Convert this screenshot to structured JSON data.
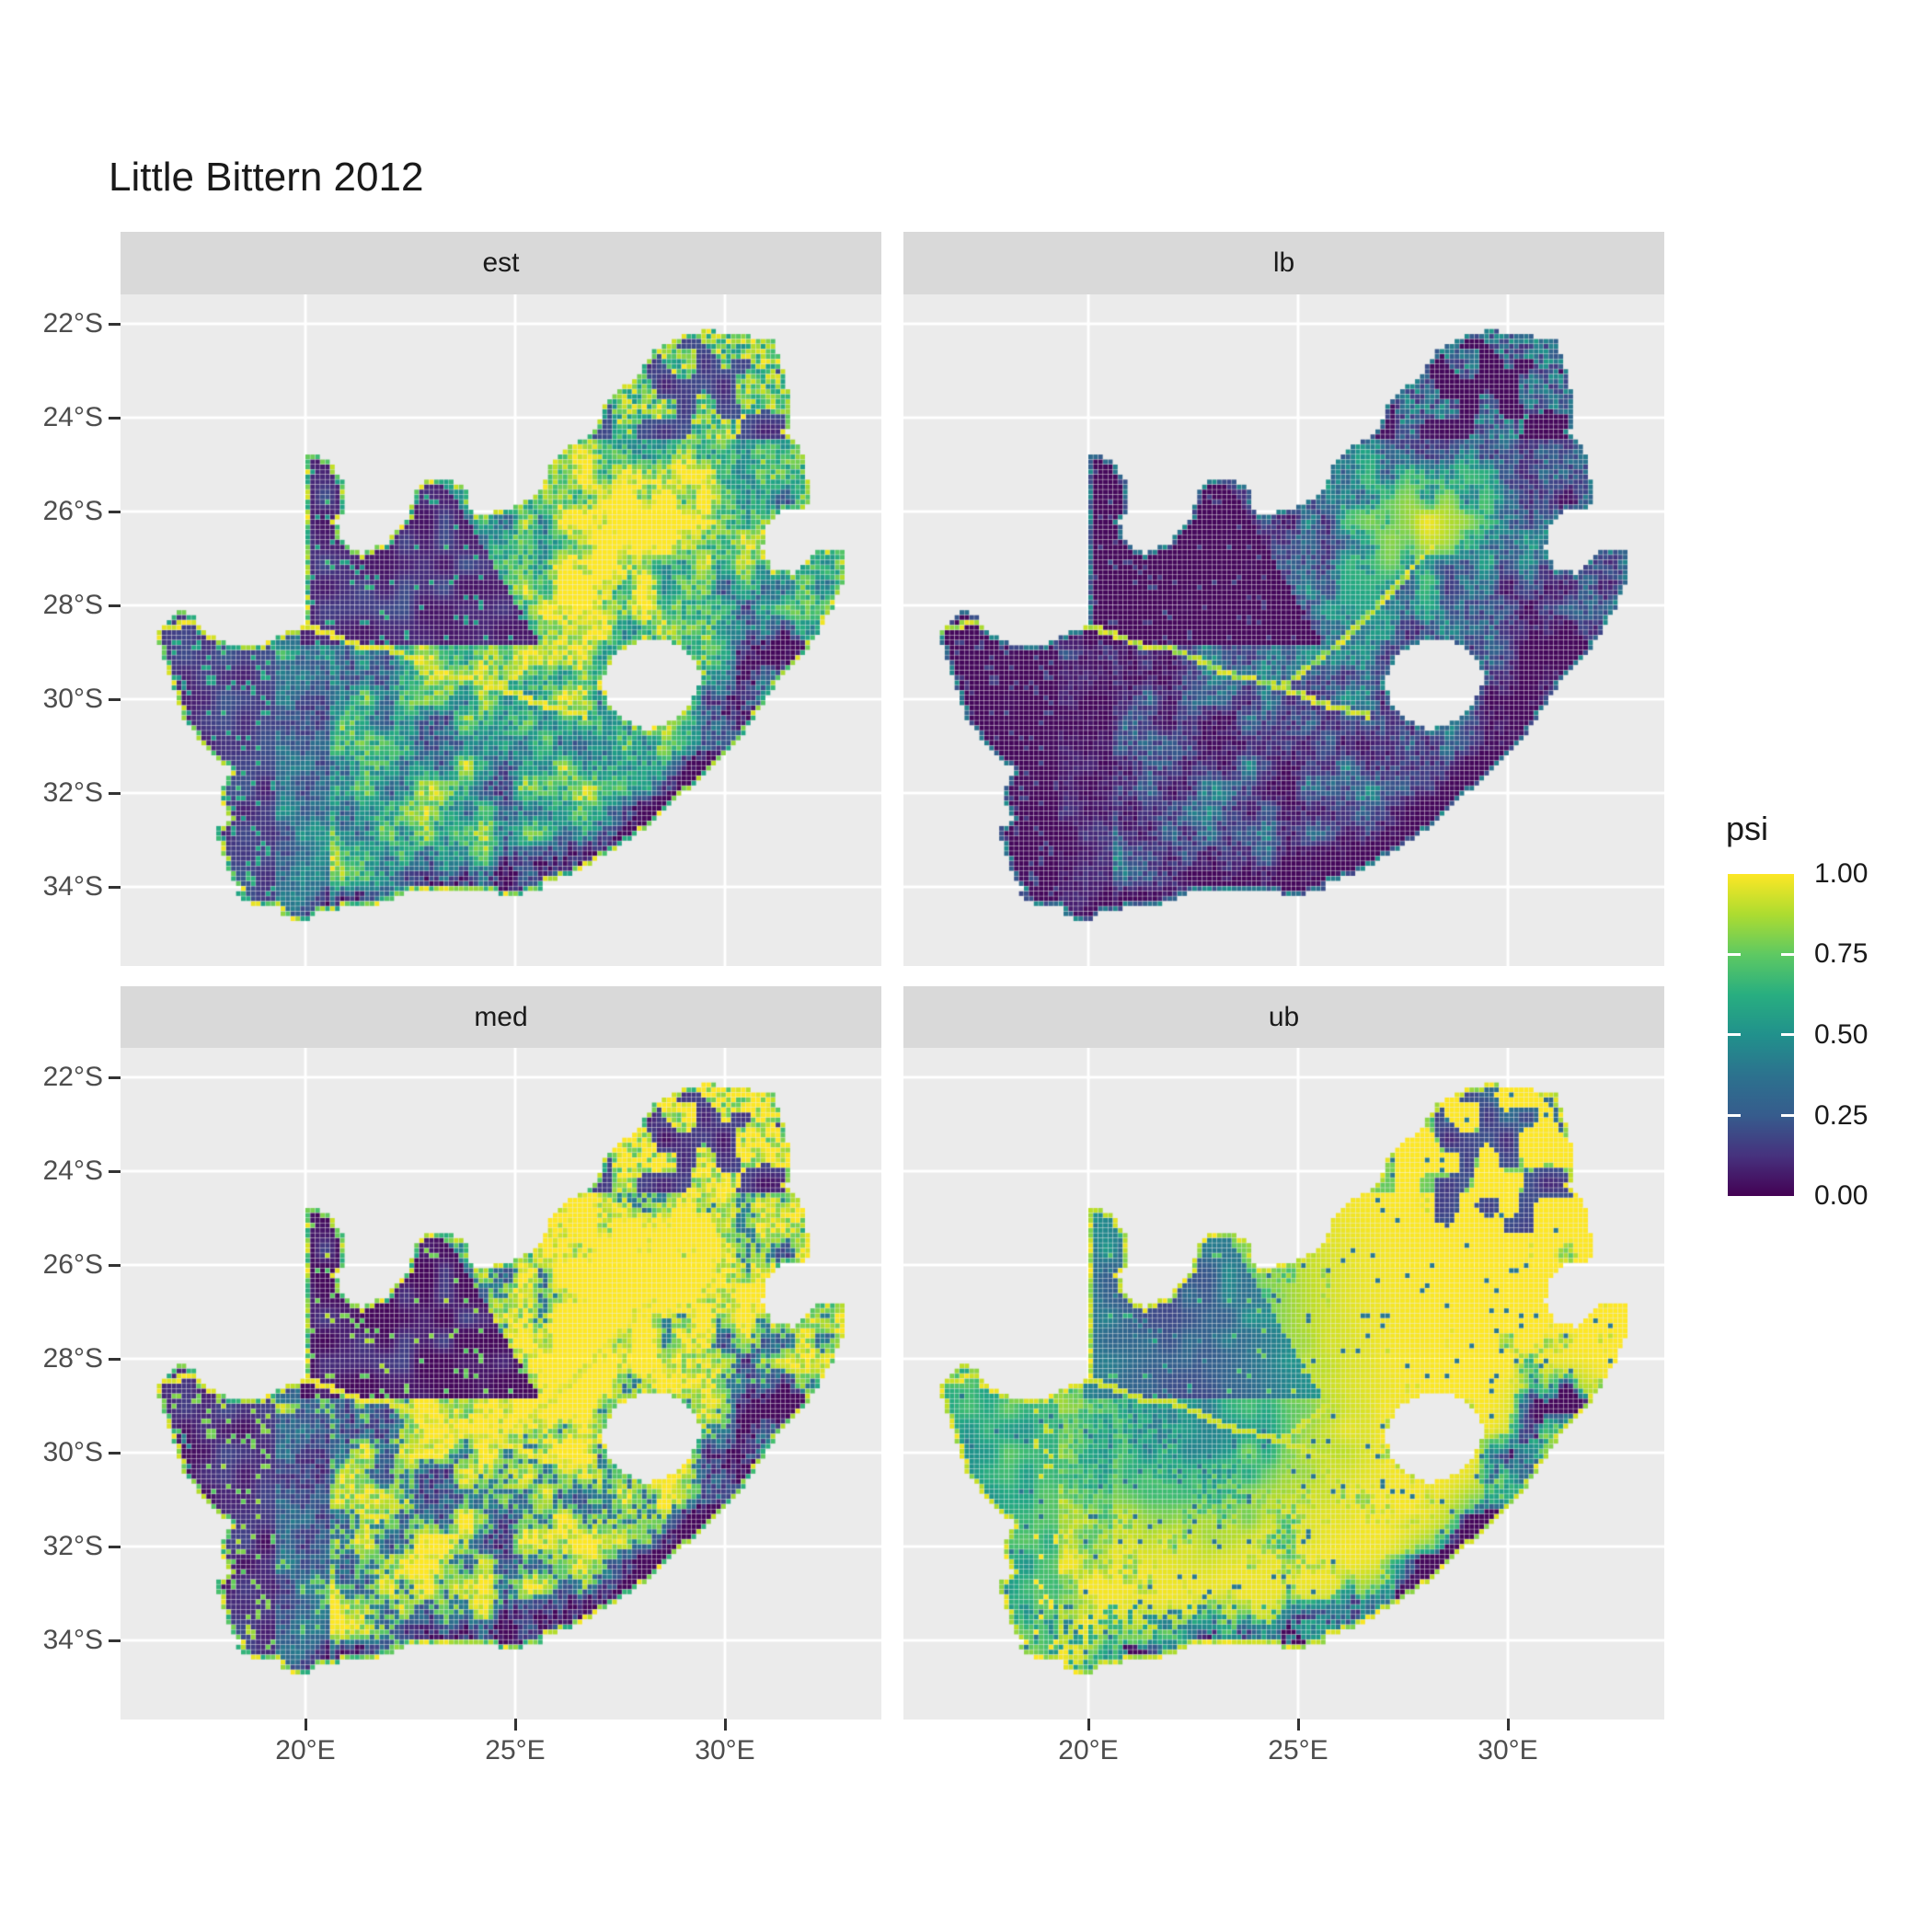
{
  "title": "Little Bittern 2012",
  "facets": [
    {
      "id": "est",
      "label": "est"
    },
    {
      "id": "lb",
      "label": "lb"
    },
    {
      "id": "med",
      "label": "med"
    },
    {
      "id": "ub",
      "label": "ub"
    }
  ],
  "x_axis": {
    "ticks": [
      "20°E",
      "25°E",
      "30°E"
    ]
  },
  "y_axis": {
    "ticks": [
      "22°S",
      "24°S",
      "26°S",
      "28°S",
      "30°S",
      "32°S",
      "34°S"
    ]
  },
  "legend": {
    "title": "psi",
    "ticks": [
      "1.00",
      "0.75",
      "0.50",
      "0.25",
      "0.00"
    ]
  },
  "colors": {
    "panel_background": "#EBEBEB",
    "strip_background": "#D9D9D9",
    "grid_color": "#FFFFFF",
    "axis_text_color": "#4D4D4D",
    "title_color": "#1A1A1A",
    "viridis_low": "#440154",
    "viridis_mid": "#21918C",
    "viridis_high": "#FDE725"
  },
  "chart_data": {
    "type": "heatmap",
    "subtype": "faceted_raster_occupancy_map",
    "title": "Little Bittern 2012",
    "region": "South Africa (Lesotho and Eswatini shown as holes)",
    "fill_variable": "psi",
    "fill_scale": {
      "palette": "viridis",
      "limits": [
        0,
        1
      ],
      "breaks": [
        0.0,
        0.25,
        0.5,
        0.75,
        1.0
      ]
    },
    "x": {
      "label": "",
      "tick_values_deg_east": [
        20,
        25,
        30
      ],
      "range_deg_east": [
        15.6,
        33.7
      ]
    },
    "y": {
      "label": "",
      "tick_values_deg_south": [
        22,
        24,
        26,
        28,
        30,
        32,
        34
      ],
      "range_deg_south": [
        21.4,
        35.7
      ]
    },
    "facets": [
      "est",
      "lb",
      "med",
      "ub"
    ],
    "facet_summaries": {
      "est": "Estimated occupancy, mixed: high psi 0.7-1.0 in the north-east (around 26-30E, 25-28S), bright yellow Orange/Vaal river lines, near-zero psi in the Kalahari north-west block (20-25E, 25-28.7S) and the west coastal strip, speckled 0.2-0.6 over the central and southern Karoo, dark coastal band along the south-east coast.",
      "lb": "Lower bound, mostly near zero (dark purple) everywhere; green-yellow psi 0.4-0.9 only along the Orange and Vaal rivers, a moderate green patch in the Gauteng/north-east area, and green fringes on the west and south coasts.",
      "med": "Median, like est but higher contrast: large yellow psi ~1 region in the north-east and along rivers and the southern interior, with near-zero Kalahari north-west block and west coast.",
      "ub": "Upper bound, mostly psi ~1 (yellow); green-teal 0.4-0.7 over the north-west Kalahari finger and Bushmanland core (20.5-23.5E, 28.5-31S), green west coastal strip, dark navy patches 0.05-0.3 in Limpopo (north-east corner) and speckled dark cells along the KwaZulu-Natal and southern coasts."
    },
    "notable_features": {
      "lesotho_hole_deg": {
        "lon": [
          27.0,
          29.5
        ],
        "lat_south": [
          28.7,
          30.7
        ]
      },
      "eswatini_notch_deg": {
        "lon": [
          31.0,
          32.0
        ],
        "lat_south": [
          25.9,
          27.3
        ]
      },
      "river_highlight": "Orange River and Vaal River rendered as bright psi ~0.9-1 lines in est, lb, med",
      "namibia_border_finger_deg_east": 20.0
    }
  }
}
